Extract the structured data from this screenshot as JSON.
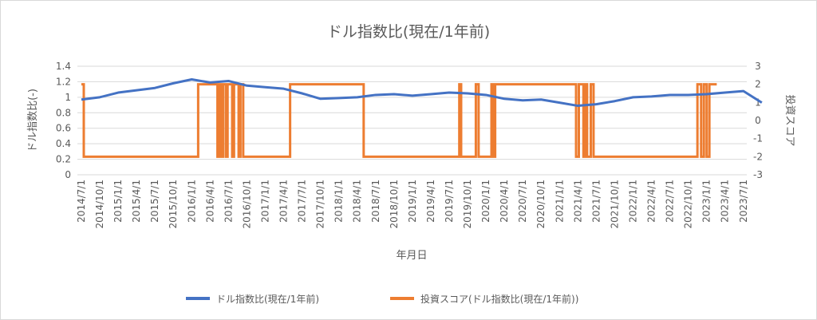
{
  "chart_data": {
    "type": "line",
    "title": "ドル指数比(現在/1年前)",
    "xlabel": "年月日",
    "ylabel_left": "ドル指数比(-)",
    "ylabel_right": "投資スコア",
    "ylim_left": [
      0,
      1.4
    ],
    "yticks_left": [
      "0",
      "0.2",
      "0.4",
      "0.6",
      "0.8",
      "1",
      "1.2",
      "1.4"
    ],
    "ylim_right": [
      -3,
      3
    ],
    "yticks_right": [
      "-3",
      "-2",
      "-1",
      "0",
      "1",
      "2",
      "3"
    ],
    "x_labels": [
      "2014/7/1",
      "2014/10/1",
      "2015/1/1",
      "2015/4/1",
      "2015/7/1",
      "2015/10/1",
      "2016/1/1",
      "2016/4/1",
      "2016/7/1",
      "2016/10/1",
      "2017/1/1",
      "2017/4/1",
      "2017/7/1",
      "2017/10/1",
      "2018/1/1",
      "2018/4/1",
      "2018/7/1",
      "2018/10/1",
      "2019/1/1",
      "2019/4/1",
      "2019/7/1",
      "2019/10/1",
      "2020/1/1",
      "2020/4/1",
      "2020/7/1",
      "2020/10/1",
      "2021/1/1",
      "2021/4/1",
      "2021/7/1",
      "2021/10/1",
      "2022/1/1",
      "2022/4/1",
      "2022/7/1",
      "2022/10/1",
      "2023/1/1",
      "2023/4/1",
      "2023/7/1"
    ],
    "grid": true,
    "legend_position": "bottom",
    "series": [
      {
        "name": "ドル指数比(現在/1年前)",
        "axis": "left",
        "color": "#4472c4",
        "x": [
          0,
          1,
          2,
          3,
          4,
          5,
          6,
          7,
          8,
          9,
          10,
          11,
          12,
          13,
          14,
          15,
          16,
          17,
          18,
          19,
          20,
          21,
          22,
          23,
          24,
          25,
          26,
          27,
          28,
          29,
          30,
          31,
          32,
          33,
          34,
          35,
          36,
          37
        ],
        "values": [
          0.97,
          1.0,
          1.06,
          1.09,
          1.12,
          1.18,
          1.23,
          1.19,
          1.21,
          1.15,
          1.13,
          1.11,
          1.05,
          0.98,
          0.99,
          1.0,
          1.03,
          1.04,
          1.02,
          1.04,
          1.06,
          1.05,
          1.03,
          0.98,
          0.96,
          0.97,
          0.93,
          0.89,
          0.91,
          0.95,
          1.0,
          1.01,
          1.03,
          1.03,
          1.04,
          1.06,
          1.08,
          0.93
        ]
      },
      {
        "name": "投資スコア(ドル指数比(現在/1年前))",
        "axis": "right",
        "color": "#ed7d31",
        "steps": [
          [
            0.0,
            2
          ],
          [
            0.13,
            -2
          ],
          [
            6.35,
            2
          ],
          [
            7.4,
            -2
          ],
          [
            7.5,
            2
          ],
          [
            7.6,
            -2
          ],
          [
            7.7,
            2
          ],
          [
            7.85,
            -2
          ],
          [
            7.95,
            2
          ],
          [
            8.2,
            -2
          ],
          [
            8.3,
            2
          ],
          [
            8.55,
            -2
          ],
          [
            8.65,
            2
          ],
          [
            8.8,
            -2
          ],
          [
            11.35,
            2
          ],
          [
            15.35,
            -2
          ],
          [
            20.55,
            2
          ],
          [
            20.65,
            -2
          ],
          [
            21.45,
            2
          ],
          [
            21.6,
            -2
          ],
          [
            22.3,
            2
          ],
          [
            22.4,
            -2
          ],
          [
            22.5,
            2
          ],
          [
            22.6,
            2
          ],
          [
            26.9,
            -2
          ],
          [
            27.05,
            2
          ],
          [
            27.3,
            -2
          ],
          [
            27.4,
            2
          ],
          [
            27.5,
            -2
          ],
          [
            27.7,
            2
          ],
          [
            27.85,
            -2
          ],
          [
            33.5,
            2
          ],
          [
            33.7,
            -2
          ],
          [
            33.85,
            2
          ],
          [
            34.0,
            -2
          ],
          [
            34.15,
            2
          ],
          [
            34.55,
            2
          ]
        ]
      }
    ]
  }
}
